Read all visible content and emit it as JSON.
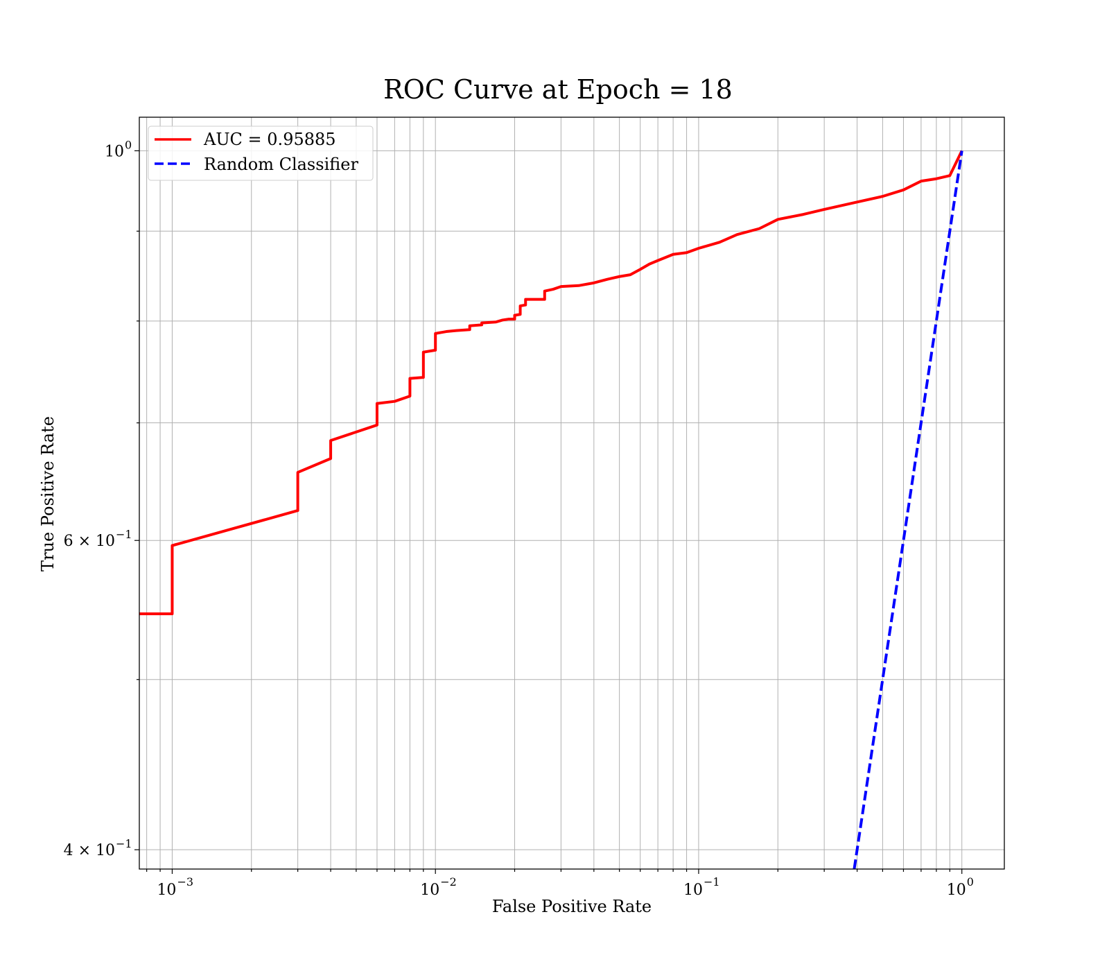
{
  "chart_data": {
    "type": "line",
    "title": "ROC Curve at Epoch = 18",
    "xlabel": "False Positive Rate",
    "ylabel": "True Positive Rate",
    "xscale": "log",
    "yscale": "log",
    "xlim": [
      0.00075,
      1.45
    ],
    "ylim": [
      0.39,
      1.045
    ],
    "grid": true,
    "grid_which": "both",
    "legend_position": "top-left",
    "x_major_ticks": [
      {
        "value": 0.001,
        "base": "10",
        "exp": "−3"
      },
      {
        "value": 0.01,
        "base": "10",
        "exp": "−2"
      },
      {
        "value": 0.1,
        "base": "10",
        "exp": "−1"
      },
      {
        "value": 1,
        "base": "10",
        "exp": "0"
      }
    ],
    "y_major_ticks": [
      {
        "value": 1.0,
        "mantissa": "",
        "base": "10",
        "exp": "0"
      },
      {
        "value": 0.6,
        "mantissa": "6",
        "base": "10",
        "exp": "−1"
      },
      {
        "value": 0.4,
        "mantissa": "4",
        "base": "10",
        "exp": "−1"
      }
    ],
    "y_minor_gridlines": [
      0.5,
      0.7,
      0.8,
      0.9
    ],
    "series": [
      {
        "name": "AUC = 0.95885",
        "color": "#ff0000",
        "style": "solid",
        "points": [
          [
            0.00075,
            0.545
          ],
          [
            0.001,
            0.545
          ],
          [
            0.001,
            0.596
          ],
          [
            0.003,
            0.624
          ],
          [
            0.003,
            0.656
          ],
          [
            0.004,
            0.668
          ],
          [
            0.004,
            0.684
          ],
          [
            0.006,
            0.698
          ],
          [
            0.006,
            0.718
          ],
          [
            0.007,
            0.72
          ],
          [
            0.008,
            0.725
          ],
          [
            0.008,
            0.742
          ],
          [
            0.009,
            0.743
          ],
          [
            0.009,
            0.768
          ],
          [
            0.01,
            0.77
          ],
          [
            0.01,
            0.787
          ],
          [
            0.011,
            0.789
          ],
          [
            0.012,
            0.79
          ],
          [
            0.0135,
            0.791
          ],
          [
            0.0135,
            0.795
          ],
          [
            0.015,
            0.796
          ],
          [
            0.015,
            0.798
          ],
          [
            0.017,
            0.799
          ],
          [
            0.018,
            0.801
          ],
          [
            0.019,
            0.802
          ],
          [
            0.02,
            0.802
          ],
          [
            0.02,
            0.806
          ],
          [
            0.021,
            0.807
          ],
          [
            0.021,
            0.816
          ],
          [
            0.022,
            0.817
          ],
          [
            0.022,
            0.823
          ],
          [
            0.026,
            0.823
          ],
          [
            0.026,
            0.832
          ],
          [
            0.028,
            0.834
          ],
          [
            0.03,
            0.837
          ],
          [
            0.035,
            0.838
          ],
          [
            0.04,
            0.841
          ],
          [
            0.045,
            0.845
          ],
          [
            0.05,
            0.848
          ],
          [
            0.055,
            0.85
          ],
          [
            0.06,
            0.856
          ],
          [
            0.065,
            0.862
          ],
          [
            0.07,
            0.866
          ],
          [
            0.08,
            0.873
          ],
          [
            0.09,
            0.875
          ],
          [
            0.1,
            0.88
          ],
          [
            0.12,
            0.887
          ],
          [
            0.14,
            0.896
          ],
          [
            0.17,
            0.903
          ],
          [
            0.2,
            0.914
          ],
          [
            0.25,
            0.92
          ],
          [
            0.3,
            0.926
          ],
          [
            0.4,
            0.935
          ],
          [
            0.5,
            0.942
          ],
          [
            0.6,
            0.95
          ],
          [
            0.7,
            0.961
          ],
          [
            0.8,
            0.964
          ],
          [
            0.9,
            0.968
          ],
          [
            1.0,
            1.0
          ]
        ]
      },
      {
        "name": "Random Classifier",
        "color": "#0000ff",
        "style": "dashed",
        "points": [
          [
            0.39,
            0.39
          ],
          [
            1.0,
            1.0
          ]
        ]
      }
    ]
  }
}
